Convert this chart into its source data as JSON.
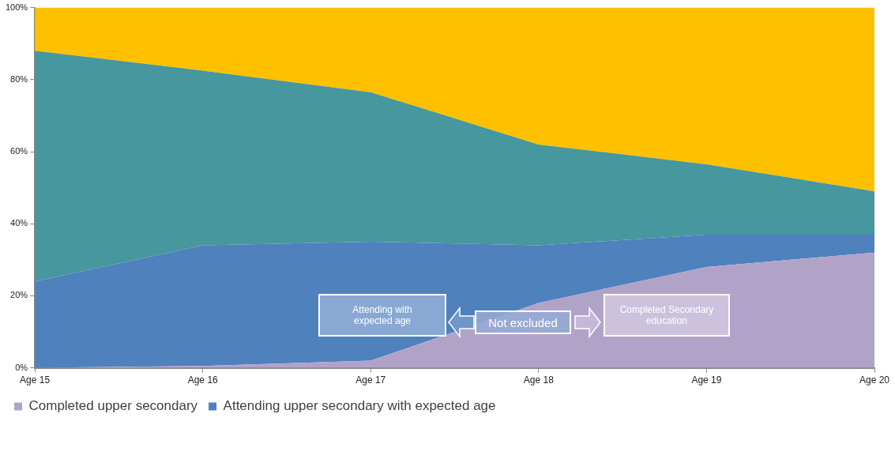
{
  "chart_data": {
    "type": "area",
    "stacked": true,
    "categories": [
      "Age 15",
      "Age 16",
      "Age 17",
      "Age 18",
      "Age 19",
      "Age 20"
    ],
    "series": [
      {
        "name": "Completed upper secondary",
        "color": "#b1a3c8",
        "values": [
          0,
          0.5,
          2,
          18,
          28,
          32
        ]
      },
      {
        "name": "Attending upper secondary with expected age",
        "color": "#4f81bd",
        "values": [
          24,
          33.5,
          33,
          16,
          9,
          5
        ]
      },
      {
        "color": "#46979e",
        "values": [
          64,
          48.5,
          41.5,
          28,
          19.5,
          12
        ]
      },
      {
        "color": "#ffc000",
        "values": [
          12,
          17.5,
          23.5,
          38,
          43.5,
          51
        ]
      }
    ],
    "ylim": [
      0,
      100
    ],
    "yticks": [
      {
        "value": 0,
        "label": "0%"
      },
      {
        "value": 20,
        "label": "20%"
      },
      {
        "value": 40,
        "label": "40%"
      },
      {
        "value": 60,
        "label": "60%"
      },
      {
        "value": 80,
        "label": "80%"
      },
      {
        "value": 100,
        "label": "100%"
      }
    ],
    "grid": false,
    "legend": "bottom left",
    "annotations": [
      "Attending with expected age",
      "Not excluded",
      "Completed Secondary education"
    ]
  }
}
